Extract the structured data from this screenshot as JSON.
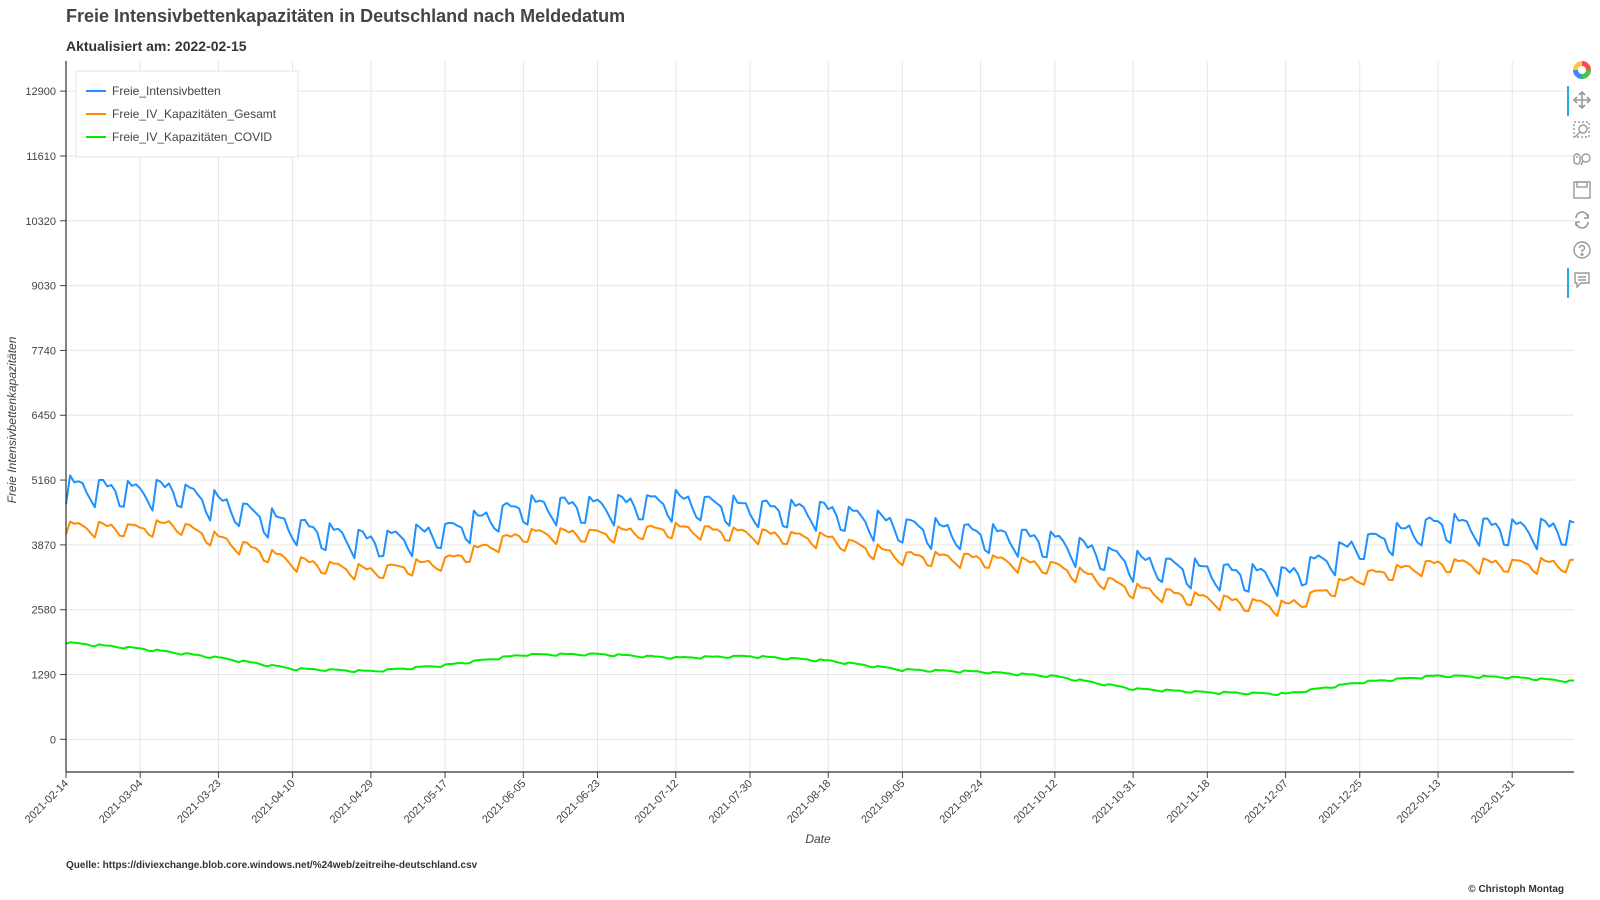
{
  "title": "Freie Intensivbettenkapazitäten in Deutschland nach Meldedatum",
  "subtitle": "Aktualisiert am: 2022-02-15",
  "source": "Quelle: https://diviexchange.blob.core.windows.net/%24web/zeitreihe-deutschland.csv",
  "credit": "© Christoph Montag",
  "toolbar": [
    "bokeh-logo-icon",
    "pan-icon",
    "box-zoom-icon",
    "wheel-zoom-icon",
    "save-icon",
    "reset-icon",
    "help-icon",
    "hover-icon"
  ],
  "chart_data": {
    "type": "line",
    "xlabel": "Date",
    "ylabel": "Freie Intensivbettenkapazitäten",
    "x_range": [
      "2021-02-14",
      "2022-02-15"
    ],
    "ylim": [
      -650,
      13500
    ],
    "yticks": [
      0,
      1290,
      2580,
      3870,
      5160,
      6450,
      7740,
      9030,
      10320,
      11610,
      12900
    ],
    "xticks": [
      "2021-02-14",
      "2021-03-04",
      "2021-03-23",
      "2021-04-10",
      "2021-04-29",
      "2021-05-17",
      "2021-06-05",
      "2021-06-23",
      "2021-07-12",
      "2021-07-30",
      "2021-08-18",
      "2021-09-05",
      "2021-09-24",
      "2021-10-12",
      "2021-10-31",
      "2021-11-18",
      "2021-12-07",
      "2021-12-25",
      "2022-01-13",
      "2022-01-31"
    ],
    "grid": true,
    "legend_position": "top-left",
    "weekly_dip_weekday": "Sunday",
    "series": [
      {
        "name": "Freie_Intensivbetten",
        "color": "#1e90ff",
        "weekly_amplitude": 550,
        "baseline": [
          {
            "date": "2021-02-14",
            "value": 4950
          },
          {
            "date": "2021-03-04",
            "value": 4850
          },
          {
            "date": "2021-03-12",
            "value": 4900
          },
          {
            "date": "2021-03-23",
            "value": 4620
          },
          {
            "date": "2021-04-10",
            "value": 4150
          },
          {
            "date": "2021-04-29",
            "value": 3850
          },
          {
            "date": "2021-05-17",
            "value": 4050
          },
          {
            "date": "2021-06-05",
            "value": 4550
          },
          {
            "date": "2021-06-23",
            "value": 4550
          },
          {
            "date": "2021-07-12",
            "value": 4650
          },
          {
            "date": "2021-07-30",
            "value": 4500
          },
          {
            "date": "2021-08-18",
            "value": 4450
          },
          {
            "date": "2021-09-05",
            "value": 4150
          },
          {
            "date": "2021-09-24",
            "value": 4000
          },
          {
            "date": "2021-10-12",
            "value": 3850
          },
          {
            "date": "2021-10-31",
            "value": 3450
          },
          {
            "date": "2021-11-18",
            "value": 3250
          },
          {
            "date": "2021-12-07",
            "value": 3150
          },
          {
            "date": "2021-12-25",
            "value": 3800
          },
          {
            "date": "2022-01-13",
            "value": 4200
          },
          {
            "date": "2022-01-31",
            "value": 4100
          },
          {
            "date": "2022-02-15",
            "value": 4100
          }
        ]
      },
      {
        "name": "Freie_IV_Kapazitäten_Gesamt",
        "color": "#ff8c00",
        "weekly_amplitude": 280,
        "baseline": [
          {
            "date": "2021-02-14",
            "value": 4200
          },
          {
            "date": "2021-03-04",
            "value": 4150
          },
          {
            "date": "2021-03-12",
            "value": 4250
          },
          {
            "date": "2021-03-23",
            "value": 3950
          },
          {
            "date": "2021-04-10",
            "value": 3500
          },
          {
            "date": "2021-04-29",
            "value": 3300
          },
          {
            "date": "2021-05-17",
            "value": 3500
          },
          {
            "date": "2021-06-05",
            "value": 4050
          },
          {
            "date": "2021-06-23",
            "value": 4050
          },
          {
            "date": "2021-07-12",
            "value": 4150
          },
          {
            "date": "2021-07-30",
            "value": 4050
          },
          {
            "date": "2021-08-18",
            "value": 3950
          },
          {
            "date": "2021-09-05",
            "value": 3600
          },
          {
            "date": "2021-09-24",
            "value": 3550
          },
          {
            "date": "2021-10-12",
            "value": 3400
          },
          {
            "date": "2021-10-31",
            "value": 2950
          },
          {
            "date": "2021-11-18",
            "value": 2750
          },
          {
            "date": "2021-12-07",
            "value": 2600
          },
          {
            "date": "2021-12-25",
            "value": 3200
          },
          {
            "date": "2022-01-13",
            "value": 3450
          },
          {
            "date": "2022-01-31",
            "value": 3450
          },
          {
            "date": "2022-02-15",
            "value": 3450
          }
        ]
      },
      {
        "name": "Freie_IV_Kapazitäten_COVID",
        "color": "#00ee00",
        "weekly_amplitude": 40,
        "baseline": [
          {
            "date": "2021-02-14",
            "value": 1920
          },
          {
            "date": "2021-03-04",
            "value": 1800
          },
          {
            "date": "2021-03-23",
            "value": 1620
          },
          {
            "date": "2021-04-10",
            "value": 1400
          },
          {
            "date": "2021-04-29",
            "value": 1350
          },
          {
            "date": "2021-05-17",
            "value": 1470
          },
          {
            "date": "2021-06-05",
            "value": 1680
          },
          {
            "date": "2021-06-23",
            "value": 1690
          },
          {
            "date": "2021-07-12",
            "value": 1620
          },
          {
            "date": "2021-07-30",
            "value": 1650
          },
          {
            "date": "2021-08-18",
            "value": 1560
          },
          {
            "date": "2021-09-05",
            "value": 1380
          },
          {
            "date": "2021-09-24",
            "value": 1340
          },
          {
            "date": "2021-10-12",
            "value": 1250
          },
          {
            "date": "2021-10-31",
            "value": 1000
          },
          {
            "date": "2021-11-18",
            "value": 930
          },
          {
            "date": "2021-12-07",
            "value": 900
          },
          {
            "date": "2021-12-25",
            "value": 1130
          },
          {
            "date": "2022-01-13",
            "value": 1260
          },
          {
            "date": "2022-01-31",
            "value": 1230
          },
          {
            "date": "2022-02-15",
            "value": 1150
          }
        ]
      }
    ]
  }
}
